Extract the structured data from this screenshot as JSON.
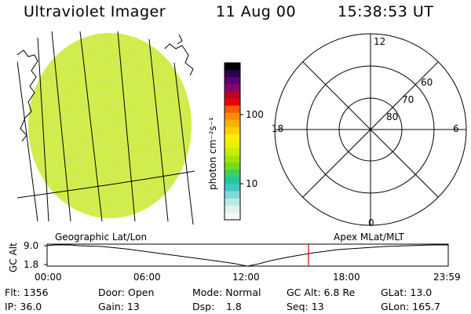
{
  "header": {
    "title": "Ultraviolet Imager",
    "date": "11 Aug 00",
    "time": "15:38:53 UT"
  },
  "colorbar": {
    "unit_label": "photon cm⁻²s⁻¹",
    "ticks": [
      "100",
      "10"
    ],
    "colors": [
      "#000000",
      "#2a0050",
      "#5a006e",
      "#8a0070",
      "#bf0028",
      "#e60000",
      "#ff5a00",
      "#ff8c00",
      "#ffb000",
      "#ffd000",
      "#ffee00",
      "#e8f000",
      "#c8ec00",
      "#a0e400",
      "#70dc20",
      "#40d060",
      "#20c8a0",
      "#40c8c8",
      "#80d8d8",
      "#b8e8e8",
      "#e0f0f0",
      "#f4f8f8"
    ]
  },
  "polar_plot": {
    "lat_labels": [
      "80",
      "70",
      "60"
    ],
    "mlt_labels": {
      "top": "12",
      "right": "6",
      "bottom": "0",
      "left": "18"
    }
  },
  "map_labels": {
    "left": "Geographic Lat/Lon",
    "right": "Apex MLat/MLT"
  },
  "altitude_plot": {
    "axis_title": "GC Alt",
    "y_ticks": [
      "9.0",
      "1.8"
    ],
    "x_ticks": [
      "00:00",
      "06:00",
      "12:00",
      "18:00",
      "23:59"
    ],
    "marker_color": "#e00000"
  },
  "info": {
    "flt": "Flt: 1356",
    "ip": "IP: 36.0",
    "door": "Door: Open",
    "gain": "Gain: 13",
    "mode": "Mode: Normal",
    "dsp_label": "Dsp:",
    "dsp_value": "1.8",
    "gc_alt": "GC Alt: 6.8 Re",
    "seq": "Seq: 13",
    "glat": "GLat:  13.0",
    "glon": "GLon: 165.7"
  }
}
